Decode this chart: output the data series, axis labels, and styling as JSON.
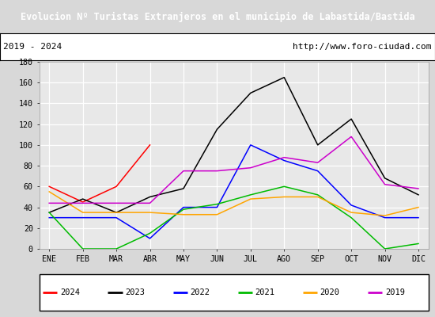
{
  "title": "Evolucion Nº Turistas Extranjeros en el municipio de Labastida/Bastida",
  "subtitle_left": "2019 - 2024",
  "subtitle_right": "http://www.foro-ciudad.com",
  "title_bg": "#4472c4",
  "title_color": "#ffffff",
  "months": [
    "ENE",
    "FEB",
    "MAR",
    "ABR",
    "MAY",
    "JUN",
    "JUL",
    "AGO",
    "SEP",
    "OCT",
    "NOV",
    "DIC"
  ],
  "ylim": [
    0,
    180
  ],
  "yticks": [
    0,
    20,
    40,
    60,
    80,
    100,
    120,
    140,
    160,
    180
  ],
  "series": {
    "2024": {
      "color": "#ff0000",
      "data": [
        60,
        45,
        60,
        100,
        null,
        null,
        null,
        null,
        null,
        null,
        null,
        null
      ]
    },
    "2023": {
      "color": "#000000",
      "data": [
        35,
        48,
        35,
        50,
        58,
        115,
        150,
        165,
        100,
        125,
        68,
        52
      ]
    },
    "2022": {
      "color": "#0000ff",
      "data": [
        30,
        30,
        30,
        10,
        40,
        40,
        100,
        85,
        75,
        42,
        30,
        30
      ]
    },
    "2021": {
      "color": "#00bb00",
      "data": [
        35,
        0,
        0,
        15,
        38,
        43,
        52,
        60,
        52,
        30,
        0,
        5
      ]
    },
    "2020": {
      "color": "#ffa500",
      "data": [
        55,
        35,
        35,
        35,
        33,
        33,
        48,
        50,
        50,
        35,
        32,
        40
      ]
    },
    "2019": {
      "color": "#cc00cc",
      "data": [
        44,
        44,
        44,
        44,
        75,
        75,
        78,
        88,
        83,
        108,
        62,
        58
      ]
    }
  },
  "legend_order": [
    "2024",
    "2023",
    "2022",
    "2021",
    "2020",
    "2019"
  ],
  "fig_bg": "#d8d8d8",
  "plot_bg": "#e8e8e8",
  "grid_color": "#ffffff"
}
